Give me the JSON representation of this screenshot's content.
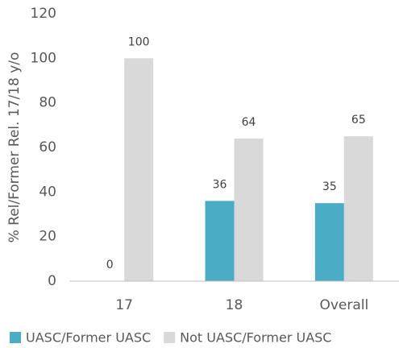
{
  "chart_data": {
    "type": "bar",
    "y_axis_label": "% Rel/Former Rel. 17/18 y/o",
    "categories": [
      "17",
      "18",
      "Overall"
    ],
    "series": [
      {
        "name": "UASC/Former UASC",
        "color": "#4bacc6",
        "values": [
          0,
          36,
          35
        ]
      },
      {
        "name": "Not UASC/Former UASC",
        "color": "#d9d9d9",
        "values": [
          100,
          64,
          65
        ]
      }
    ],
    "ylim": [
      0,
      120
    ],
    "yticks": [
      0,
      20,
      40,
      60,
      80,
      100,
      120
    ],
    "grid": false,
    "legend": "bottom"
  }
}
